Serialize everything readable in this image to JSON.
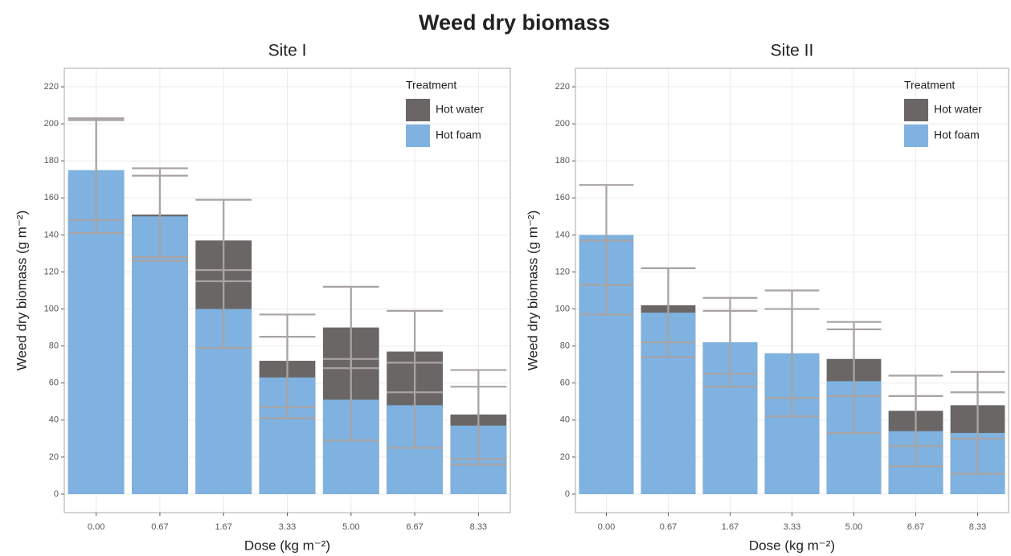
{
  "title": "Weed dry biomass",
  "chart_data": [
    {
      "type": "bar",
      "title": "Site I",
      "x_label": "Dose (kg m⁻²)",
      "y_label": "Weed dry biomass (g m⁻²)",
      "categories": [
        "0.00",
        "0.67",
        "1.67",
        "3.33",
        "5.00",
        "6.67",
        "8.33"
      ],
      "series": [
        {
          "name": "Hot water",
          "color": "#6b6666",
          "values": [
            172,
            151,
            137,
            72,
            90,
            77,
            43
          ],
          "errors": [
            31,
            25,
            22,
            25,
            22,
            22,
            24
          ]
        },
        {
          "name": "Hot foam",
          "color": "#7fb2e0",
          "values": [
            175,
            150,
            100,
            63,
            51,
            48,
            37
          ],
          "errors": [
            27,
            22,
            21,
            22,
            22,
            23,
            21
          ]
        }
      ],
      "legend_title": "Treatment",
      "legend": "top-right",
      "ylim": [
        -10,
        230
      ],
      "yticks": [
        0,
        20,
        40,
        60,
        80,
        100,
        120,
        140,
        160,
        180,
        200,
        220
      ],
      "grid": true
    },
    {
      "type": "bar",
      "title": "Site II",
      "x_label": "Dose (kg m⁻²)",
      "y_label": "Weed dry biomass (g m⁻²)",
      "categories": [
        "0.00",
        "0.67",
        "1.67",
        "3.33",
        "5.00",
        "6.67",
        "8.33"
      ],
      "series": [
        {
          "name": "Hot water",
          "color": "#6b6666",
          "values": [
            117,
            102,
            82,
            76,
            73,
            45,
            48
          ],
          "errors": [
            20,
            20,
            17,
            24,
            20,
            19,
            18
          ]
        },
        {
          "name": "Hot foam",
          "color": "#7fb2e0",
          "values": [
            140,
            98,
            82,
            76,
            61,
            34,
            33
          ],
          "errors": [
            27,
            24,
            24,
            34,
            28,
            19,
            22
          ]
        }
      ],
      "legend_title": "Treatment",
      "legend": "top-right",
      "ylim": [
        -10,
        230
      ],
      "yticks": [
        0,
        20,
        40,
        60,
        80,
        100,
        120,
        140,
        160,
        180,
        200,
        220
      ],
      "grid": true
    }
  ]
}
